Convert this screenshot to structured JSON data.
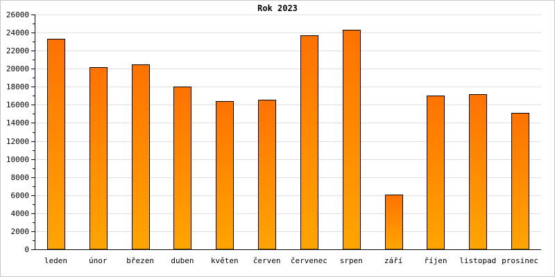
{
  "chart_data": {
    "type": "bar",
    "title": "Rok 2023",
    "xlabel": "",
    "ylabel": "",
    "categories": [
      "leden",
      "únor",
      "březen",
      "duben",
      "květen",
      "červen",
      "červenec",
      "srpen",
      "září",
      "říjen",
      "listopad",
      "prosinec"
    ],
    "values": [
      23300,
      20200,
      20450,
      18000,
      16450,
      16550,
      23700,
      24300,
      6050,
      17000,
      17150,
      15100
    ],
    "ylim": [
      0,
      26000
    ],
    "yticks": [
      0,
      2000,
      4000,
      6000,
      8000,
      10000,
      12000,
      14000,
      16000,
      18000,
      20000,
      22000,
      24000,
      26000
    ],
    "grid": true,
    "legend": "none",
    "colors": {
      "bar_top": "#ff7200",
      "bar_bottom": "#ffa500",
      "bar_edge": "#000000",
      "grid": "#dddddd",
      "axis": "#000000",
      "frame": "#c8c8c8"
    }
  }
}
